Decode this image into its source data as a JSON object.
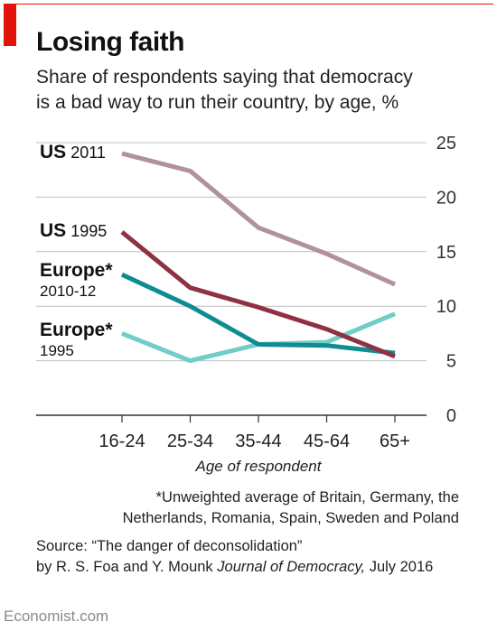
{
  "header": {
    "title": "Losing faith",
    "subtitle_line1": "Share of respondents saying that democracy",
    "subtitle_line2": "is a bad way to run their country, by age, %"
  },
  "colors": {
    "accent": "#e3120b",
    "us_2011": "#b1919a",
    "us_1995": "#8e3241",
    "europe_2010_12": "#0f8c92",
    "europe_1995": "#70cdc8",
    "grid": "#bfbfbf"
  },
  "chart_data": {
    "type": "line",
    "categories": [
      "16-24",
      "25-34",
      "35-44",
      "45-64",
      "65+"
    ],
    "xlabel": "Age of respondent",
    "ylabel": "",
    "ylim": [
      0,
      25
    ],
    "yticks": [
      "25",
      "20",
      "15",
      "10",
      "5",
      "0"
    ],
    "grid": true,
    "legend_placement": "direct labels at left of lines",
    "series": [
      {
        "name_bold": "US",
        "name_rest": "2011",
        "name_line2": "",
        "color": "#b1919a",
        "values": [
          24.0,
          22.4,
          17.2,
          14.8,
          12.0
        ]
      },
      {
        "name_bold": "US",
        "name_rest": "1995",
        "name_line2": "",
        "color": "#8e3241",
        "values": [
          16.8,
          11.7,
          9.9,
          7.9,
          5.4
        ]
      },
      {
        "name_bold": "Europe*",
        "name_rest": "",
        "name_line2": "2010-12",
        "color": "#0f8c92",
        "values": [
          12.9,
          10.0,
          6.5,
          6.4,
          5.7
        ]
      },
      {
        "name_bold": "Europe*",
        "name_rest": "",
        "name_line2": "1995",
        "color": "#70cdc8",
        "values": [
          7.5,
          5.0,
          6.5,
          6.7,
          9.3
        ]
      }
    ]
  },
  "footnote": {
    "line1": "*Unweighted average of Britain, Germany, the",
    "line2": "Netherlands, Romania, Spain, Sweden and Poland"
  },
  "source": {
    "line1": "Source: “The danger of deconsolidation”",
    "line2_prefix": "by R. S. Foa and Y. Mounk ",
    "line2_journal": "Journal of Democracy,",
    "line2_suffix": " July 2016"
  },
  "brand": "Economist.com"
}
